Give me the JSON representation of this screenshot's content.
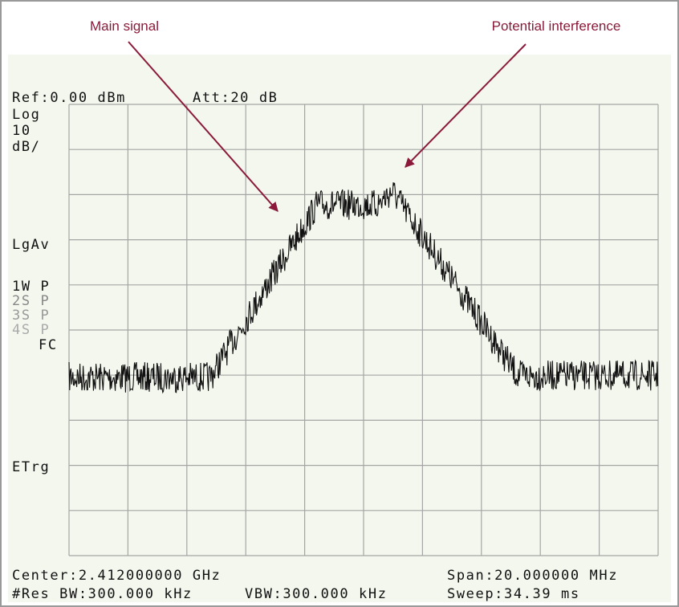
{
  "annotations": {
    "main": "Main signal",
    "interference": "Potential interference"
  },
  "header": {
    "ref": "Ref:0.00 dBm",
    "att": "Att:20 dB"
  },
  "side": {
    "log": "Log",
    "scale": "10",
    "unit": "dB/",
    "avg": "LgAv",
    "w1": "1W P",
    "s2": "2S P",
    "s3": "3S P",
    "s4": "4S P",
    "fc": "FC",
    "trig": "ETrg"
  },
  "footer": {
    "center": "Center:2.412000000 GHz",
    "span": "Span:20.000000 MHz",
    "rbw": "#Res BW:300.000 kHz",
    "vbw": "VBW:300.000 kHz",
    "sweep": "Sweep:34.39 ms"
  }
}
